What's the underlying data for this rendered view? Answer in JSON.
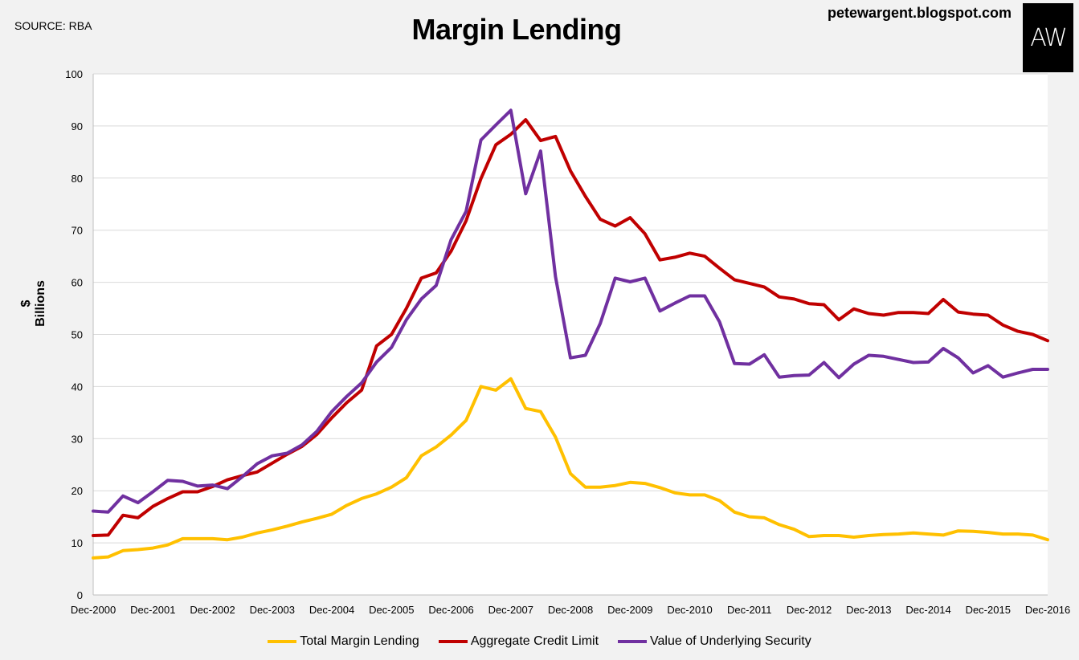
{
  "header": {
    "source": "SOURCE: RBA",
    "title": "Margin Lending",
    "site": "petewargent.blogspot.com",
    "logo_text": "AW"
  },
  "colors": {
    "background": "#f2f2f2",
    "grid": "#d9d9d9",
    "total": "#ffc000",
    "credit": "#c00000",
    "security": "#7030a0"
  },
  "chart_data": {
    "type": "line",
    "title": "Margin Lending",
    "xlabel": "",
    "ylabel": "$ Billions",
    "ylim": [
      0,
      100
    ],
    "yticks": [
      0,
      10,
      20,
      30,
      40,
      50,
      60,
      70,
      80,
      90,
      100
    ],
    "grid": true,
    "legend_position": "bottom",
    "x_tick_labels": [
      "Dec-2000",
      "Dec-2001",
      "Dec-2002",
      "Dec-2003",
      "Dec-2004",
      "Dec-2005",
      "Dec-2006",
      "Dec-2007",
      "Dec-2008",
      "Dec-2009",
      "Dec-2010",
      "Dec-2011",
      "Dec-2012",
      "Dec-2013",
      "Dec-2014",
      "Dec-2015",
      "Dec-2016"
    ],
    "x_tick_quarter_index": [
      0,
      4,
      8,
      12,
      16,
      20,
      24,
      28,
      32,
      36,
      40,
      44,
      48,
      52,
      56,
      60,
      64
    ],
    "series": [
      {
        "name": "Total Margin Lending",
        "color": "#ffc000",
        "values": [
          7.1,
          7.3,
          8.5,
          8.7,
          9.0,
          9.6,
          10.8,
          10.8,
          10.8,
          10.6,
          11.1,
          11.9,
          12.5,
          13.2,
          14.0,
          14.7,
          15.5,
          17.2,
          18.5,
          19.4,
          20.7,
          22.5,
          26.7,
          28.4,
          30.7,
          33.5,
          40.0,
          39.3,
          41.5,
          35.8,
          35.2,
          30.3,
          23.3,
          20.7,
          20.7,
          21.0,
          21.6,
          21.4,
          20.6,
          19.6,
          19.2,
          19.2,
          18.1,
          15.9,
          15.0,
          14.8,
          13.5,
          12.6,
          11.2,
          11.4,
          11.4,
          11.1,
          11.4,
          11.6,
          11.7,
          11.9,
          11.7,
          11.5,
          12.3,
          12.2,
          12.0,
          11.7,
          11.7,
          11.5,
          10.6
        ]
      },
      {
        "name": "Aggregate Credit Limit",
        "color": "#c00000",
        "values": [
          11.4,
          11.5,
          15.3,
          14.8,
          17.0,
          18.5,
          19.8,
          19.8,
          20.8,
          22.1,
          22.9,
          23.6,
          25.3,
          27.0,
          28.5,
          30.8,
          34.0,
          36.9,
          39.3,
          47.8,
          50.0,
          55.0,
          60.8,
          61.8,
          66.0,
          71.8,
          79.9,
          86.4,
          88.4,
          91.2,
          87.2,
          88.0,
          81.4,
          76.5,
          72.1,
          70.8,
          72.4,
          69.3,
          64.3,
          64.8,
          65.6,
          65.0,
          62.7,
          60.5,
          59.8,
          59.1,
          57.2,
          56.8,
          55.9,
          55.7,
          52.8,
          54.9,
          54.0,
          53.7,
          54.2,
          54.2,
          54.0,
          56.7,
          54.3,
          53.9,
          53.7,
          51.8,
          50.6,
          50.0,
          48.8
        ]
      },
      {
        "name": "Value of Underlying Security",
        "color": "#7030a0",
        "values": [
          16.1,
          15.9,
          19.0,
          17.7,
          19.8,
          22.0,
          21.8,
          20.9,
          21.1,
          20.4,
          22.7,
          25.2,
          26.7,
          27.2,
          28.8,
          31.4,
          35.2,
          38.1,
          40.7,
          44.7,
          47.5,
          52.8,
          56.8,
          59.4,
          68.2,
          73.6,
          87.3,
          90.2,
          93.0,
          77.0,
          85.2,
          61.1,
          45.5,
          46.0,
          52.1,
          60.8,
          60.1,
          60.8,
          54.5,
          56.0,
          57.4,
          57.4,
          52.4,
          44.4,
          44.3,
          46.1,
          41.8,
          42.1,
          42.2,
          44.6,
          41.7,
          44.3,
          46.0,
          45.8,
          45.2,
          44.6,
          44.7,
          47.3,
          45.5,
          42.6,
          44.0,
          41.8,
          42.6,
          43.3,
          43.3
        ]
      }
    ]
  }
}
